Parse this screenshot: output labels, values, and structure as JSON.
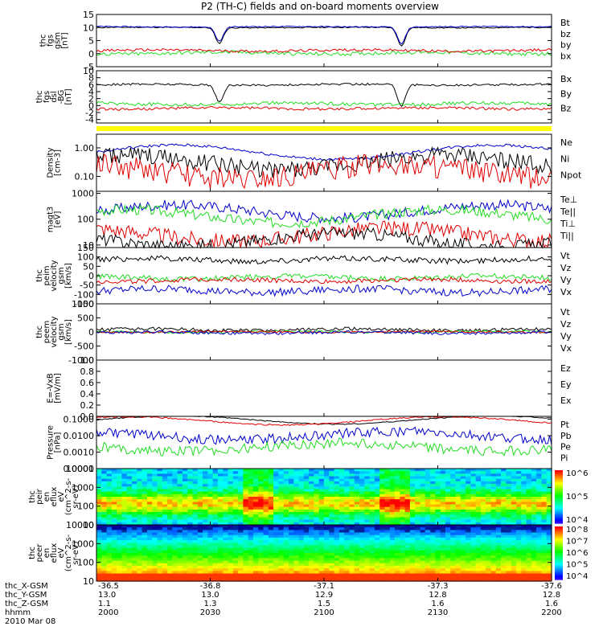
{
  "title": "P2 (TH-C) fields and on-board moments overview",
  "colors": {
    "black": "#000000",
    "red": "#e00000",
    "green": "#22dd22",
    "blue": "#0000cc",
    "yellow": "#ffff00",
    "navy": "#000066"
  },
  "chart_data": {
    "type": "line",
    "time_axis": {
      "row_labels": [
        "thc_X-GSM",
        "thc_Y-GSM",
        "thc_Z-GSM",
        "hhmm",
        "2010 Mar 08"
      ],
      "ticks": [
        {
          "x": "-36.5",
          "y": "13.0",
          "z": "1.1",
          "t": "2000"
        },
        {
          "x": "-36.8",
          "y": "13.0",
          "z": "1.3",
          "t": "2030"
        },
        {
          "x": "-37.1",
          "y": "12.9",
          "z": "1.5",
          "t": "2100"
        },
        {
          "x": "-37.3",
          "y": "12.8",
          "z": "1.6",
          "t": "2130"
        },
        {
          "x": "-37.6",
          "y": "12.8",
          "z": "1.6",
          "t": "2200"
        }
      ]
    },
    "panels": [
      {
        "id": "fgs",
        "ylabel": [
          "thc",
          "fgs",
          "gsm",
          "[nT]"
        ],
        "ylim": [
          -5,
          15
        ],
        "ticks": [
          "15",
          "10",
          "5",
          "0",
          "-5"
        ],
        "legend": [
          {
            "text": "Bt",
            "color": "#000000"
          },
          {
            "text": "bz",
            "color": "#e00000"
          },
          {
            "text": "by",
            "color": "#22dd22"
          },
          {
            "text": "bx",
            "color": "#0000cc"
          }
        ],
        "series": [
          {
            "color": "#000000",
            "base": 10,
            "noise": 0.2,
            "dips": [
              [
                0.27,
                6
              ],
              [
                0.67,
                7
              ]
            ]
          },
          {
            "color": "#0000cc",
            "base": 10.3,
            "noise": 0.2,
            "dips": [
              [
                0.27,
                5.5
              ],
              [
                0.67,
                6.5
              ]
            ]
          },
          {
            "color": "#22dd22",
            "base": 0.2,
            "noise": 0.7
          },
          {
            "color": "#e00000",
            "base": 1.2,
            "noise": 0.5
          }
        ]
      },
      {
        "id": "fgs_dsl",
        "ylabel": [
          "thc",
          "fgs",
          "dsl",
          "-BG",
          "[nT]"
        ],
        "ylim": [
          -5,
          10
        ],
        "ticks": [
          "10",
          "8",
          "6",
          "4",
          "2",
          "0",
          "-2",
          "-4"
        ],
        "legend": [
          {
            "text": "Bx",
            "color": "#000000"
          },
          {
            "text": "By",
            "color": "#22dd22"
          },
          {
            "text": "Bz",
            "color": "#e00000"
          }
        ],
        "series": [
          {
            "color": "#000000",
            "base": 6,
            "noise": 0.3,
            "dips": [
              [
                0.27,
                5
              ],
              [
                0.67,
                6
              ]
            ]
          },
          {
            "color": "#22dd22",
            "base": 0.5,
            "noise": 0.5
          },
          {
            "color": "#e00000",
            "base": -0.8,
            "noise": 0.4
          }
        ]
      },
      {
        "id": "density",
        "ylabel": [
          "Density",
          "[cm-3]"
        ],
        "ylim": [
          0.03,
          3
        ],
        "log": true,
        "ticks": [
          "1.00",
          "0.10"
        ],
        "legend": [
          {
            "text": "Ne",
            "color": "#e00000"
          },
          {
            "text": "Ni",
            "color": "#000000"
          },
          {
            "text": "Npot",
            "color": "#0000cc"
          }
        ],
        "series": [
          {
            "color": "#0000cc",
            "base": 0.7,
            "noise": 0.05
          },
          {
            "color": "#000000",
            "base": 0.3,
            "noise": 0.3
          },
          {
            "color": "#e00000",
            "base": 0.15,
            "noise": 0.4
          }
        ]
      },
      {
        "id": "temp",
        "ylabel": [
          "magt3",
          "[eV]"
        ],
        "ylim": [
          8,
          1200
        ],
        "log": true,
        "ticks": [
          "1000",
          "100",
          "10"
        ],
        "legend": [
          {
            "text": "Te⊥",
            "color": "#e00000"
          },
          {
            "text": "Te||",
            "color": "#000000"
          },
          {
            "text": "Ti⊥",
            "color": "#e0a000"
          },
          {
            "text": "Ti||",
            "color": "#22dd22"
          }
        ],
        "series": [
          {
            "color": "#0000cc",
            "base": 200,
            "noise": 0.2
          },
          {
            "color": "#22dd22",
            "base": 130,
            "noise": 0.2
          },
          {
            "color": "#e00000",
            "base": 25,
            "noise": 0.3
          },
          {
            "color": "#000000",
            "base": 16,
            "noise": 0.25
          }
        ]
      },
      {
        "id": "peim",
        "ylabel": [
          "thc",
          "peim",
          "velocity",
          "gsm",
          "[km/s]"
        ],
        "ylim": [
          -150,
          150
        ],
        "ticks": [
          "150",
          "100",
          "50",
          "0",
          "-50",
          "-100",
          "-150"
        ],
        "legend": [
          {
            "text": "Vt",
            "color": "#000000"
          },
          {
            "text": "Vz",
            "color": "#e00000"
          },
          {
            "text": "Vy",
            "color": "#22dd22"
          },
          {
            "text": "Vx",
            "color": "#0000cc"
          }
        ],
        "series": [
          {
            "color": "#000000",
            "base": 85,
            "noise": 15
          },
          {
            "color": "#22dd22",
            "base": -10,
            "noise": 15
          },
          {
            "color": "#e00000",
            "base": -25,
            "noise": 12
          },
          {
            "color": "#0000cc",
            "base": -80,
            "noise": 20
          }
        ]
      },
      {
        "id": "peem",
        "ylabel": [
          "thc",
          "peem",
          "velocity",
          "gsm",
          "[km/s]"
        ],
        "ylim": [
          -1000,
          1000
        ],
        "ticks": [
          "1000",
          "500",
          "0",
          "-500",
          "-1000"
        ],
        "legend": [
          {
            "text": "Vt",
            "color": "#000000"
          },
          {
            "text": "Vz",
            "color": "#e00000"
          },
          {
            "text": "Vy",
            "color": "#22dd22"
          },
          {
            "text": "Vx",
            "color": "#0000cc"
          }
        ],
        "series": [
          {
            "color": "#000000",
            "base": 80,
            "noise": 60
          },
          {
            "color": "#22dd22",
            "base": 0,
            "noise": 40
          },
          {
            "color": "#e00000",
            "base": 0,
            "noise": 30
          },
          {
            "color": "#0000cc",
            "base": -30,
            "noise": 50
          }
        ]
      },
      {
        "id": "efield",
        "ylabel": [
          "E=-VxB",
          "[mV/m]"
        ],
        "ylim": [
          0,
          1
        ],
        "ticks": [
          "1.0",
          "0.8",
          "0.6",
          "0.4",
          "0.2",
          "0.0"
        ],
        "legend": [
          {
            "text": "Ez",
            "color": "#e00000"
          },
          {
            "text": "Ey",
            "color": "#22dd22"
          },
          {
            "text": "Ex",
            "color": "#0000cc"
          }
        ],
        "series": []
      },
      {
        "id": "pressure",
        "ylabel": [
          "Pressure",
          "[nPa]"
        ],
        "ylim": [
          0.0001,
          0.15
        ],
        "log": true,
        "ticks": [
          "0.1000",
          "0.0100",
          "0.0010",
          "0.0001"
        ],
        "legend": [
          {
            "text": "Pt",
            "color": "#000000"
          },
          {
            "text": "Pb",
            "color": "#e00000"
          },
          {
            "text": "Pe",
            "color": "#22dd22"
          },
          {
            "text": "Pi",
            "color": "#0000cc"
          }
        ],
        "series": [
          {
            "color": "#000000",
            "base": 0.09,
            "noise": 0.03
          },
          {
            "color": "#e00000",
            "base": 0.08,
            "noise": 0.04
          },
          {
            "color": "#0000cc",
            "base": 0.01,
            "noise": 0.3
          },
          {
            "color": "#22dd22",
            "base": 0.002,
            "noise": 0.3
          }
        ]
      },
      {
        "id": "peir",
        "type": "heatmap",
        "ylabel": [
          "thc",
          "peir",
          "en",
          "eflux",
          "eV",
          "(cm^2-s-",
          "sr-eV)"
        ],
        "ylim": [
          10,
          10000
        ],
        "log": true,
        "ticks": [
          "10000",
          "1000",
          "100",
          "10"
        ],
        "colorbar": {
          "ticks": [
            "10^6",
            "10^5",
            "10^4"
          ]
        }
      },
      {
        "id": "peer",
        "type": "heatmap",
        "ylabel": [
          "thc",
          "peer",
          "en",
          "eflux",
          "eV",
          "(cm^2-s-",
          "sr-eV)"
        ],
        "ylim": [
          10,
          10000
        ],
        "log": true,
        "ticks": [
          "10000",
          "1000",
          "100",
          "10"
        ],
        "colorbar": {
          "ticks": [
            "10^8",
            "10^7",
            "10^6",
            "10^5",
            "10^4"
          ]
        }
      }
    ]
  }
}
